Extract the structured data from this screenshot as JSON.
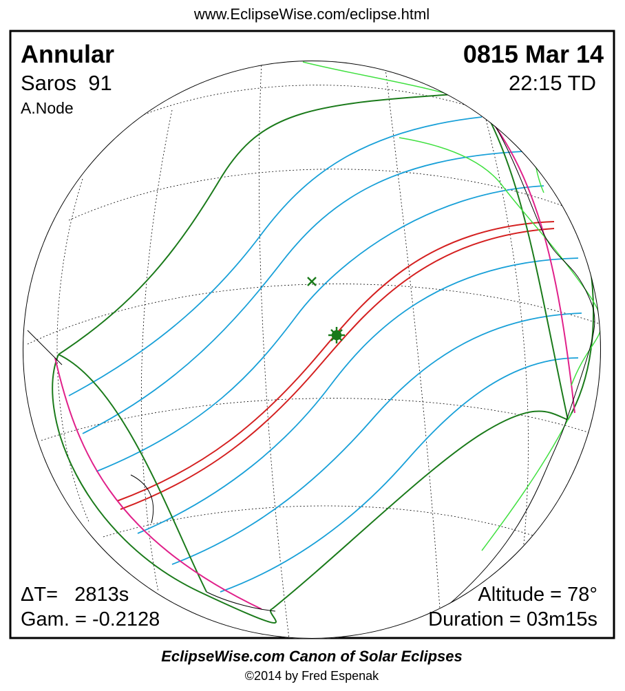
{
  "header": {
    "url": "www.EclipseWise.com/eclipse.html"
  },
  "panel": {
    "top_left": {
      "eclipse_type": "Annular",
      "saros": "Saros  91",
      "node": "A.Node"
    },
    "top_right": {
      "date": "0815 Mar 14",
      "time": "22:15 TD"
    },
    "bottom_left": {
      "delta_t": "ΔT=   2813s",
      "gamma": "Gam. = -0.2128"
    },
    "bottom_right": {
      "altitude": "Altitude = 78°",
      "duration": "Duration = 03m15s"
    }
  },
  "footer": {
    "title": "EclipseWise.com Canon of Solar Eclipses",
    "credit": "©2014 by Fred Espenak"
  }
}
